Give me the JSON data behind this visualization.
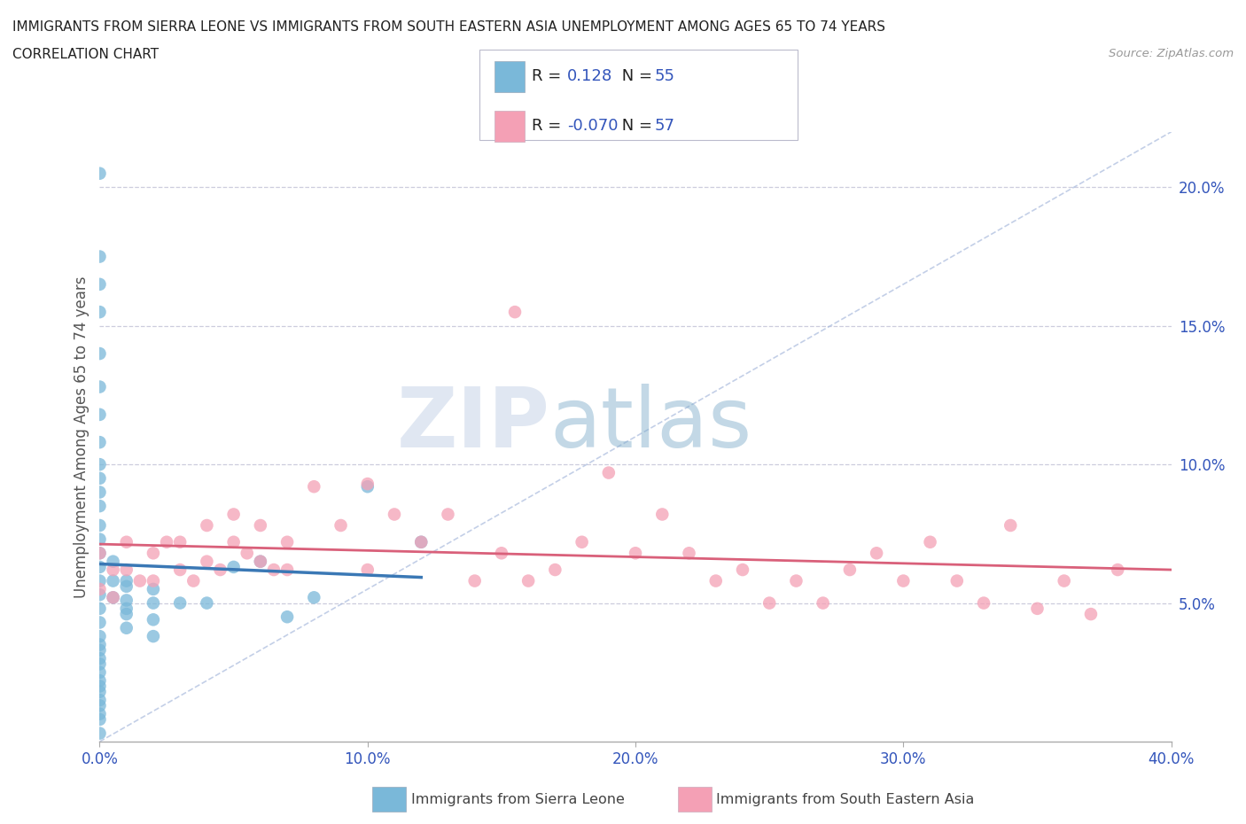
{
  "title_line1": "IMMIGRANTS FROM SIERRA LEONE VS IMMIGRANTS FROM SOUTH EASTERN ASIA UNEMPLOYMENT AMONG AGES 65 TO 74 YEARS",
  "title_line2": "CORRELATION CHART",
  "source_text": "Source: ZipAtlas.com",
  "ylabel": "Unemployment Among Ages 65 to 74 years",
  "xlim": [
    0.0,
    0.4
  ],
  "ylim": [
    0.0,
    0.22
  ],
  "xtick_labels": [
    "0.0%",
    "10.0%",
    "20.0%",
    "30.0%",
    "40.0%"
  ],
  "xtick_vals": [
    0.0,
    0.1,
    0.2,
    0.3,
    0.4
  ],
  "ytick_labels": [
    "5.0%",
    "10.0%",
    "15.0%",
    "20.0%"
  ],
  "ytick_vals": [
    0.05,
    0.1,
    0.15,
    0.2
  ],
  "color_sierra": "#7ab8d9",
  "color_sea": "#f4a0b5",
  "color_trend_sierra": "#3a78b5",
  "color_trend_sea": "#d9607a",
  "watermark_zip": "ZIP",
  "watermark_atlas": "atlas",
  "legend_r_sierra": "0.128",
  "legend_n_sierra": "55",
  "legend_r_sea": "-0.070",
  "legend_n_sea": "57",
  "legend_label_sierra": "Immigrants from Sierra Leone",
  "legend_label_sea": "Immigrants from South Eastern Asia",
  "sierra_leone_x": [
    0.0,
    0.0,
    0.0,
    0.0,
    0.0,
    0.0,
    0.0,
    0.0,
    0.0,
    0.0,
    0.0,
    0.0,
    0.0,
    0.0,
    0.0,
    0.0,
    0.0,
    0.0,
    0.0,
    0.0,
    0.0,
    0.0,
    0.005,
    0.005,
    0.005,
    0.01,
    0.01,
    0.01,
    0.01,
    0.02,
    0.02,
    0.02,
    0.03,
    0.04,
    0.05,
    0.06,
    0.07,
    0.08,
    0.1,
    0.12,
    0.0,
    0.0,
    0.0,
    0.0,
    0.0,
    0.0,
    0.0,
    0.0,
    0.0,
    0.0,
    0.0,
    0.0,
    0.01,
    0.01,
    0.02
  ],
  "sierra_leone_y": [
    0.205,
    0.175,
    0.165,
    0.155,
    0.14,
    0.128,
    0.118,
    0.108,
    0.1,
    0.095,
    0.09,
    0.085,
    0.078,
    0.073,
    0.068,
    0.063,
    0.058,
    0.053,
    0.048,
    0.043,
    0.038,
    0.033,
    0.065,
    0.058,
    0.052,
    0.056,
    0.051,
    0.046,
    0.041,
    0.05,
    0.044,
    0.038,
    0.05,
    0.05,
    0.063,
    0.065,
    0.045,
    0.052,
    0.092,
    0.072,
    0.028,
    0.022,
    0.018,
    0.013,
    0.008,
    0.003,
    0.035,
    0.03,
    0.025,
    0.02,
    0.015,
    0.01,
    0.058,
    0.048,
    0.055
  ],
  "sea_x": [
    0.0,
    0.0,
    0.005,
    0.005,
    0.01,
    0.01,
    0.015,
    0.02,
    0.02,
    0.025,
    0.03,
    0.03,
    0.035,
    0.04,
    0.04,
    0.045,
    0.05,
    0.05,
    0.055,
    0.06,
    0.06,
    0.065,
    0.07,
    0.07,
    0.08,
    0.09,
    0.1,
    0.1,
    0.11,
    0.12,
    0.13,
    0.14,
    0.15,
    0.155,
    0.16,
    0.17,
    0.18,
    0.19,
    0.2,
    0.21,
    0.22,
    0.23,
    0.24,
    0.25,
    0.26,
    0.27,
    0.28,
    0.29,
    0.3,
    0.31,
    0.32,
    0.33,
    0.34,
    0.35,
    0.36,
    0.37,
    0.38
  ],
  "sea_y": [
    0.068,
    0.055,
    0.062,
    0.052,
    0.072,
    0.062,
    0.058,
    0.068,
    0.058,
    0.072,
    0.072,
    0.062,
    0.058,
    0.078,
    0.065,
    0.062,
    0.082,
    0.072,
    0.068,
    0.078,
    0.065,
    0.062,
    0.072,
    0.062,
    0.092,
    0.078,
    0.093,
    0.062,
    0.082,
    0.072,
    0.082,
    0.058,
    0.068,
    0.155,
    0.058,
    0.062,
    0.072,
    0.097,
    0.068,
    0.082,
    0.068,
    0.058,
    0.062,
    0.05,
    0.058,
    0.05,
    0.062,
    0.068,
    0.058,
    0.072,
    0.058,
    0.05,
    0.078,
    0.048,
    0.058,
    0.046,
    0.062
  ]
}
